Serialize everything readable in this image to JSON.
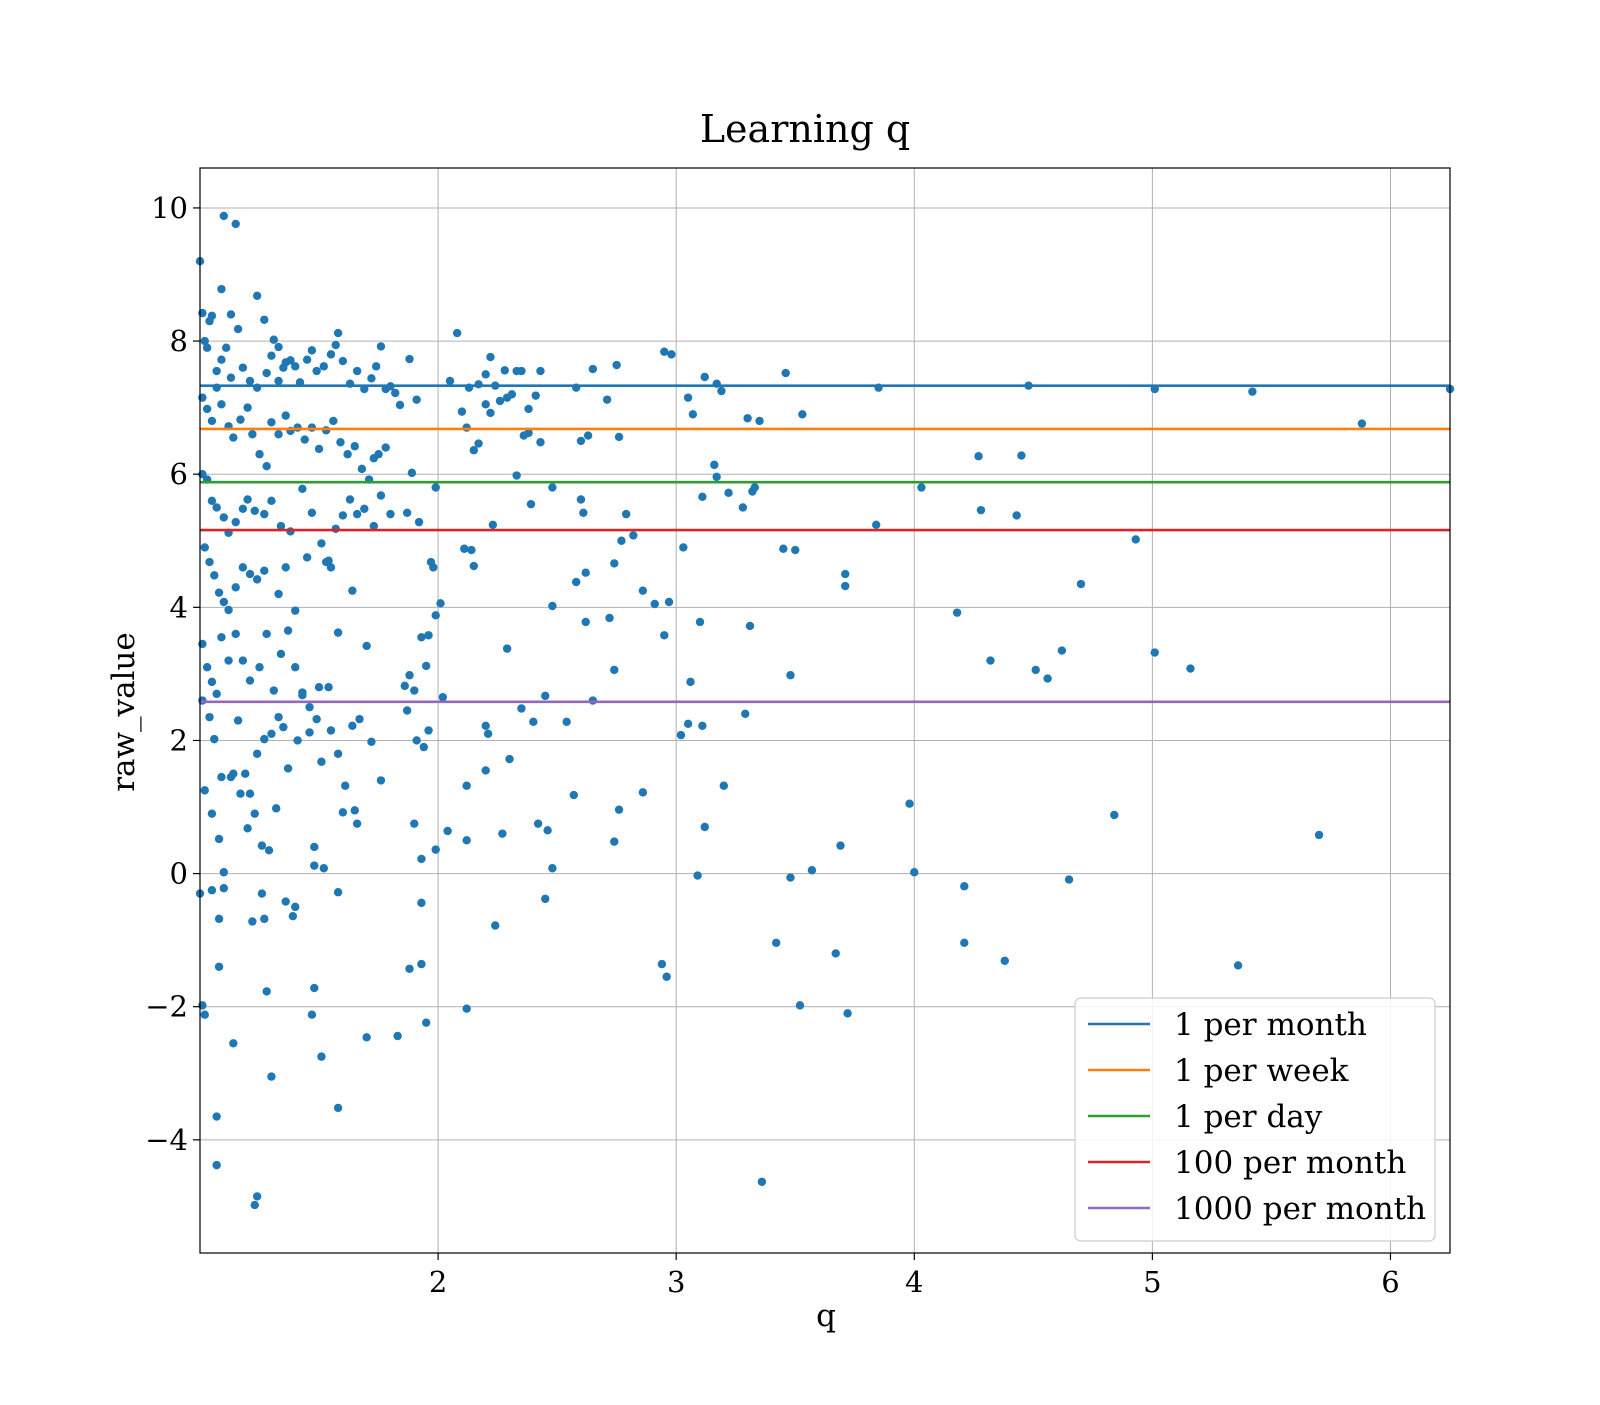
{
  "chart_data": {
    "type": "scatter",
    "title": "Learning q",
    "xlabel": "q",
    "ylabel": "raw_value",
    "xlim": [
      1,
      6.25
    ],
    "ylim": [
      -5.7,
      10.6
    ],
    "x_ticks": [
      2,
      3,
      4,
      5,
      6
    ],
    "x_tick_labels": [
      "2",
      "3",
      "4",
      "5",
      "6"
    ],
    "y_ticks": [
      -4,
      -2,
      0,
      2,
      4,
      6,
      8,
      10
    ],
    "y_tick_labels": [
      "−4",
      "−2",
      "0",
      "2",
      "4",
      "6",
      "8",
      "10"
    ],
    "grid": true,
    "legend_position": "lower-right",
    "point_color": "#1f77b4",
    "hlines": [
      {
        "name": "1 per month",
        "y": 7.33,
        "color": "#1f77b4"
      },
      {
        "name": "1 per week",
        "y": 6.68,
        "color": "#ff7f0e"
      },
      {
        "name": "1 per day",
        "y": 5.88,
        "color": "#2ca02c"
      },
      {
        "name": "100 per month",
        "y": 5.16,
        "color": "#d62728"
      },
      {
        "name": "1000 per month",
        "y": 2.58,
        "color": "#9467bd"
      }
    ],
    "points": [
      [
        1.0,
        9.2
      ],
      [
        1.01,
        8.42
      ],
      [
        1.02,
        8.0
      ],
      [
        1.03,
        7.9
      ],
      [
        1.04,
        8.3
      ],
      [
        1.05,
        8.38
      ],
      [
        1.07,
        7.55
      ],
      [
        1.09,
        7.72
      ],
      [
        1.11,
        7.9
      ],
      [
        1.13,
        7.45
      ],
      [
        1.1,
        9.88
      ],
      [
        1.15,
        9.76
      ],
      [
        1.09,
        8.78
      ],
      [
        1.13,
        8.4
      ],
      [
        1.16,
        8.18
      ],
      [
        1.24,
        8.68
      ],
      [
        1.27,
        8.32
      ],
      [
        1.31,
        8.02
      ],
      [
        1.33,
        7.91
      ],
      [
        1.36,
        7.68
      ],
      [
        1.18,
        7.6
      ],
      [
        1.21,
        7.4
      ],
      [
        1.24,
        7.3
      ],
      [
        1.28,
        7.52
      ],
      [
        1.3,
        7.78
      ],
      [
        1.33,
        7.4
      ],
      [
        1.35,
        7.6
      ],
      [
        1.38,
        7.71
      ],
      [
        1.4,
        7.62
      ],
      [
        1.42,
        7.38
      ],
      [
        1.45,
        7.72
      ],
      [
        1.47,
        7.86
      ],
      [
        1.49,
        7.55
      ],
      [
        1.52,
        7.62
      ],
      [
        1.55,
        7.8
      ],
      [
        1.57,
        7.94
      ],
      [
        1.58,
        8.12
      ],
      [
        1.6,
        7.7
      ],
      [
        1.63,
        7.36
      ],
      [
        1.66,
        7.55
      ],
      [
        1.69,
        7.28
      ],
      [
        1.72,
        7.44
      ],
      [
        1.74,
        7.62
      ],
      [
        1.76,
        7.92
      ],
      [
        1.78,
        7.28
      ],
      [
        1.8,
        7.32
      ],
      [
        1.82,
        7.22
      ],
      [
        1.84,
        7.04
      ],
      [
        1.88,
        7.73
      ],
      [
        1.91,
        7.12
      ],
      [
        1.01,
        7.15
      ],
      [
        1.03,
        6.98
      ],
      [
        1.05,
        6.8
      ],
      [
        1.07,
        7.3
      ],
      [
        1.09,
        7.05
      ],
      [
        1.12,
        6.72
      ],
      [
        1.14,
        6.55
      ],
      [
        1.17,
        6.82
      ],
      [
        1.2,
        7.0
      ],
      [
        1.22,
        6.6
      ],
      [
        1.25,
        6.3
      ],
      [
        1.28,
        6.12
      ],
      [
        1.3,
        6.78
      ],
      [
        1.33,
        6.6
      ],
      [
        1.36,
        6.88
      ],
      [
        1.38,
        6.65
      ],
      [
        1.41,
        6.7
      ],
      [
        1.44,
        6.52
      ],
      [
        1.47,
        6.7
      ],
      [
        1.5,
        6.38
      ],
      [
        1.53,
        6.66
      ],
      [
        1.56,
        6.8
      ],
      [
        1.59,
        6.48
      ],
      [
        1.62,
        6.3
      ],
      [
        1.65,
        6.42
      ],
      [
        1.68,
        6.08
      ],
      [
        1.71,
        5.92
      ],
      [
        1.73,
        6.24
      ],
      [
        1.75,
        6.3
      ],
      [
        1.78,
        6.4
      ],
      [
        1.01,
        6.0
      ],
      [
        1.03,
        5.92
      ],
      [
        1.05,
        5.6
      ],
      [
        1.07,
        5.5
      ],
      [
        1.1,
        5.35
      ],
      [
        1.12,
        5.12
      ],
      [
        1.15,
        5.28
      ],
      [
        1.18,
        5.48
      ],
      [
        1.2,
        5.62
      ],
      [
        1.23,
        5.45
      ],
      [
        1.27,
        5.4
      ],
      [
        1.3,
        5.6
      ],
      [
        1.34,
        5.22
      ],
      [
        1.38,
        5.14
      ],
      [
        1.43,
        5.78
      ],
      [
        1.47,
        5.42
      ],
      [
        1.51,
        4.96
      ],
      [
        1.54,
        4.7
      ],
      [
        1.57,
        5.18
      ],
      [
        1.6,
        5.38
      ],
      [
        1.63,
        5.62
      ],
      [
        1.66,
        5.4
      ],
      [
        1.69,
        5.48
      ],
      [
        1.73,
        5.22
      ],
      [
        1.76,
        5.68
      ],
      [
        1.8,
        5.4
      ],
      [
        1.87,
        5.42
      ],
      [
        1.92,
        5.28
      ],
      [
        1.99,
        5.8
      ],
      [
        1.89,
        6.02
      ],
      [
        1.02,
        4.9
      ],
      [
        1.04,
        4.68
      ],
      [
        1.06,
        4.48
      ],
      [
        1.08,
        4.22
      ],
      [
        1.1,
        4.08
      ],
      [
        1.12,
        3.96
      ],
      [
        1.15,
        4.3
      ],
      [
        1.18,
        4.6
      ],
      [
        1.21,
        4.5
      ],
      [
        1.24,
        4.42
      ],
      [
        1.27,
        4.55
      ],
      [
        1.33,
        4.2
      ],
      [
        1.36,
        4.6
      ],
      [
        1.4,
        3.95
      ],
      [
        1.45,
        4.75
      ],
      [
        1.53,
        4.68
      ],
      [
        1.55,
        4.6
      ],
      [
        1.64,
        4.25
      ],
      [
        1.97,
        4.68
      ],
      [
        1.98,
        4.6
      ],
      [
        1.01,
        3.45
      ],
      [
        1.03,
        3.1
      ],
      [
        1.05,
        2.88
      ],
      [
        1.07,
        2.7
      ],
      [
        1.09,
        3.55
      ],
      [
        1.12,
        3.2
      ],
      [
        1.15,
        3.6
      ],
      [
        1.18,
        3.2
      ],
      [
        1.21,
        2.9
      ],
      [
        1.25,
        3.1
      ],
      [
        1.28,
        3.6
      ],
      [
        1.31,
        2.75
      ],
      [
        1.34,
        3.3
      ],
      [
        1.37,
        3.65
      ],
      [
        1.4,
        3.1
      ],
      [
        1.43,
        2.72
      ],
      [
        1.46,
        2.5
      ],
      [
        1.5,
        2.8
      ],
      [
        1.54,
        2.8
      ],
      [
        1.58,
        3.62
      ],
      [
        1.7,
        3.42
      ],
      [
        1.86,
        2.82
      ],
      [
        1.88,
        2.98
      ],
      [
        1.9,
        2.75
      ],
      [
        1.93,
        3.55
      ],
      [
        1.95,
        3.12
      ],
      [
        1.96,
        3.58
      ],
      [
        2.01,
        4.06
      ],
      [
        1.99,
        3.88
      ],
      [
        2.02,
        2.65
      ],
      [
        1.01,
        2.6
      ],
      [
        1.04,
        2.35
      ],
      [
        1.06,
        2.02
      ],
      [
        1.09,
        1.45
      ],
      [
        1.13,
        1.45
      ],
      [
        1.16,
        2.3
      ],
      [
        1.19,
        1.5
      ],
      [
        1.21,
        1.2
      ],
      [
        1.24,
        1.8
      ],
      [
        1.27,
        2.02
      ],
      [
        1.3,
        2.1
      ],
      [
        1.33,
        2.35
      ],
      [
        1.35,
        2.2
      ],
      [
        1.37,
        1.58
      ],
      [
        1.41,
        2.0
      ],
      [
        1.43,
        2.68
      ],
      [
        1.46,
        2.12
      ],
      [
        1.49,
        2.32
      ],
      [
        1.51,
        1.68
      ],
      [
        1.55,
        2.15
      ],
      [
        1.58,
        1.8
      ],
      [
        1.61,
        1.32
      ],
      [
        1.64,
        2.22
      ],
      [
        1.67,
        2.32
      ],
      [
        1.72,
        1.98
      ],
      [
        1.76,
        1.4
      ],
      [
        1.87,
        2.45
      ],
      [
        1.91,
        2.0
      ],
      [
        1.94,
        1.9
      ],
      [
        1.96,
        2.15
      ],
      [
        1.02,
        1.25
      ],
      [
        1.05,
        0.9
      ],
      [
        1.08,
        0.52
      ],
      [
        1.1,
        0.02
      ],
      [
        1.14,
        1.5
      ],
      [
        1.17,
        1.2
      ],
      [
        1.2,
        0.68
      ],
      [
        1.23,
        0.9
      ],
      [
        1.26,
        0.42
      ],
      [
        1.29,
        0.35
      ],
      [
        1.32,
        0.98
      ],
      [
        1.48,
        0.4
      ],
      [
        1.52,
        0.08
      ],
      [
        1.6,
        0.92
      ],
      [
        1.65,
        0.95
      ],
      [
        1.66,
        0.75
      ],
      [
        1.9,
        0.75
      ],
      [
        1.93,
        0.22
      ],
      [
        1.99,
        0.36
      ],
      [
        1.48,
        0.12
      ],
      [
        1.0,
        -0.3
      ],
      [
        1.05,
        -0.25
      ],
      [
        1.08,
        -0.68
      ],
      [
        1.1,
        -0.22
      ],
      [
        1.22,
        -0.72
      ],
      [
        1.26,
        -0.3
      ],
      [
        1.27,
        -0.68
      ],
      [
        1.36,
        -0.42
      ],
      [
        1.39,
        -0.64
      ],
      [
        1.4,
        -0.5
      ],
      [
        1.58,
        -0.28
      ],
      [
        1.93,
        -0.44
      ],
      [
        1.08,
        -1.4
      ],
      [
        1.01,
        -1.98
      ],
      [
        1.02,
        -2.12
      ],
      [
        1.14,
        -2.55
      ],
      [
        1.28,
        -1.77
      ],
      [
        1.48,
        -1.72
      ],
      [
        1.47,
        -2.12
      ],
      [
        1.51,
        -2.75
      ],
      [
        1.7,
        -2.46
      ],
      [
        1.83,
        -2.44
      ],
      [
        1.88,
        -1.43
      ],
      [
        1.93,
        -1.36
      ],
      [
        1.95,
        -2.24
      ],
      [
        1.3,
        -3.05
      ],
      [
        1.07,
        -3.65
      ],
      [
        1.58,
        -3.52
      ],
      [
        1.07,
        -4.38
      ],
      [
        1.24,
        -4.85
      ],
      [
        1.23,
        -4.98
      ],
      [
        2.05,
        7.4
      ],
      [
        2.08,
        8.12
      ],
      [
        2.13,
        7.3
      ],
      [
        2.17,
        7.35
      ],
      [
        2.2,
        7.5
      ],
      [
        2.22,
        7.76
      ],
      [
        2.24,
        7.33
      ],
      [
        2.28,
        7.56
      ],
      [
        2.31,
        7.2
      ],
      [
        2.33,
        7.55
      ],
      [
        2.35,
        7.55
      ],
      [
        2.38,
        6.98
      ],
      [
        2.41,
        7.18
      ],
      [
        2.43,
        7.55
      ],
      [
        2.1,
        6.94
      ],
      [
        2.12,
        6.7
      ],
      [
        2.15,
        6.36
      ],
      [
        2.17,
        6.46
      ],
      [
        2.2,
        7.05
      ],
      [
        2.22,
        6.92
      ],
      [
        2.26,
        7.1
      ],
      [
        2.29,
        7.15
      ],
      [
        2.36,
        6.58
      ],
      [
        2.38,
        6.62
      ],
      [
        2.43,
        6.48
      ],
      [
        2.33,
        5.98
      ],
      [
        2.48,
        5.8
      ],
      [
        2.39,
        5.55
      ],
      [
        2.23,
        5.24
      ],
      [
        2.11,
        4.88
      ],
      [
        2.14,
        4.86
      ],
      [
        2.15,
        4.62
      ],
      [
        2.48,
        4.02
      ],
      [
        2.29,
        3.38
      ],
      [
        2.35,
        2.48
      ],
      [
        2.4,
        2.28
      ],
      [
        2.45,
        2.67
      ],
      [
        2.2,
        2.22
      ],
      [
        2.21,
        2.1
      ],
      [
        2.54,
        2.28
      ],
      [
        2.2,
        1.55
      ],
      [
        2.3,
        1.72
      ],
      [
        2.12,
        1.32
      ],
      [
        2.57,
        1.18
      ],
      [
        2.04,
        0.64
      ],
      [
        2.12,
        0.5
      ],
      [
        2.27,
        0.6
      ],
      [
        2.42,
        0.75
      ],
      [
        2.46,
        0.65
      ],
      [
        2.48,
        0.08
      ],
      [
        2.45,
        -0.38
      ],
      [
        2.24,
        -0.78
      ],
      [
        2.12,
        -2.03
      ],
      [
        2.58,
        7.3
      ],
      [
        2.65,
        7.58
      ],
      [
        2.71,
        7.12
      ],
      [
        2.75,
        7.64
      ],
      [
        2.6,
        6.5
      ],
      [
        2.63,
        6.58
      ],
      [
        2.76,
        6.56
      ],
      [
        2.6,
        5.62
      ],
      [
        2.61,
        5.42
      ],
      [
        2.79,
        5.4
      ],
      [
        2.77,
        5.0
      ],
      [
        2.82,
        5.08
      ],
      [
        2.58,
        4.38
      ],
      [
        2.62,
        4.52
      ],
      [
        2.74,
        4.66
      ],
      [
        2.86,
        4.25
      ],
      [
        2.62,
        3.78
      ],
      [
        2.72,
        3.84
      ],
      [
        2.91,
        4.05
      ],
      [
        2.97,
        4.08
      ],
      [
        2.95,
        3.58
      ],
      [
        2.74,
        3.06
      ],
      [
        2.65,
        2.6
      ],
      [
        2.86,
        1.22
      ],
      [
        2.74,
        0.48
      ],
      [
        2.76,
        0.96
      ],
      [
        2.94,
        -1.36
      ],
      [
        2.96,
        -1.55
      ],
      [
        2.95,
        7.84
      ],
      [
        2.98,
        7.8
      ],
      [
        3.07,
        6.9
      ],
      [
        3.05,
        7.15
      ],
      [
        3.12,
        7.46
      ],
      [
        3.17,
        7.36
      ],
      [
        3.19,
        7.25
      ],
      [
        3.3,
        6.84
      ],
      [
        3.35,
        6.8
      ],
      [
        3.16,
        6.14
      ],
      [
        3.17,
        5.96
      ],
      [
        3.11,
        5.66
      ],
      [
        3.22,
        5.72
      ],
      [
        3.28,
        5.5
      ],
      [
        3.32,
        5.74
      ],
      [
        3.33,
        5.8
      ],
      [
        3.03,
        4.9
      ],
      [
        3.1,
        3.78
      ],
      [
        3.31,
        3.72
      ],
      [
        3.06,
        2.88
      ],
      [
        3.05,
        2.25
      ],
      [
        3.02,
        2.08
      ],
      [
        3.11,
        2.22
      ],
      [
        3.2,
        1.32
      ],
      [
        3.29,
        2.4
      ],
      [
        3.12,
        0.7
      ],
      [
        3.09,
        -0.03
      ],
      [
        3.36,
        -4.63
      ],
      [
        3.46,
        7.52
      ],
      [
        3.53,
        6.9
      ],
      [
        3.45,
        4.88
      ],
      [
        3.5,
        4.86
      ],
      [
        3.71,
        4.5
      ],
      [
        3.71,
        4.32
      ],
      [
        3.48,
        2.98
      ],
      [
        3.42,
        -1.04
      ],
      [
        3.48,
        -0.06
      ],
      [
        3.57,
        0.05
      ],
      [
        3.69,
        0.42
      ],
      [
        3.67,
        -1.2
      ],
      [
        3.52,
        -1.98
      ],
      [
        3.72,
        -2.1
      ],
      [
        3.85,
        7.3
      ],
      [
        3.84,
        5.24
      ],
      [
        4.03,
        5.8
      ],
      [
        4.18,
        3.92
      ],
      [
        3.98,
        1.05
      ],
      [
        4.0,
        0.02
      ],
      [
        4.21,
        -0.19
      ],
      [
        4.21,
        -1.04
      ],
      [
        4.27,
        6.27
      ],
      [
        4.28,
        5.46
      ],
      [
        4.32,
        3.2
      ],
      [
        4.38,
        -1.31
      ],
      [
        4.43,
        5.38
      ],
      [
        4.45,
        6.28
      ],
      [
        4.48,
        7.33
      ],
      [
        4.51,
        3.06
      ],
      [
        4.56,
        2.93
      ],
      [
        4.62,
        3.35
      ],
      [
        4.65,
        -0.09
      ],
      [
        4.7,
        4.35
      ],
      [
        4.84,
        0.88
      ],
      [
        4.93,
        5.02
      ],
      [
        5.01,
        7.28
      ],
      [
        5.01,
        3.32
      ],
      [
        5.16,
        3.08
      ],
      [
        5.36,
        -1.38
      ],
      [
        5.42,
        7.24
      ],
      [
        5.7,
        0.58
      ],
      [
        5.88,
        6.76
      ],
      [
        6.25,
        7.28
      ]
    ]
  }
}
